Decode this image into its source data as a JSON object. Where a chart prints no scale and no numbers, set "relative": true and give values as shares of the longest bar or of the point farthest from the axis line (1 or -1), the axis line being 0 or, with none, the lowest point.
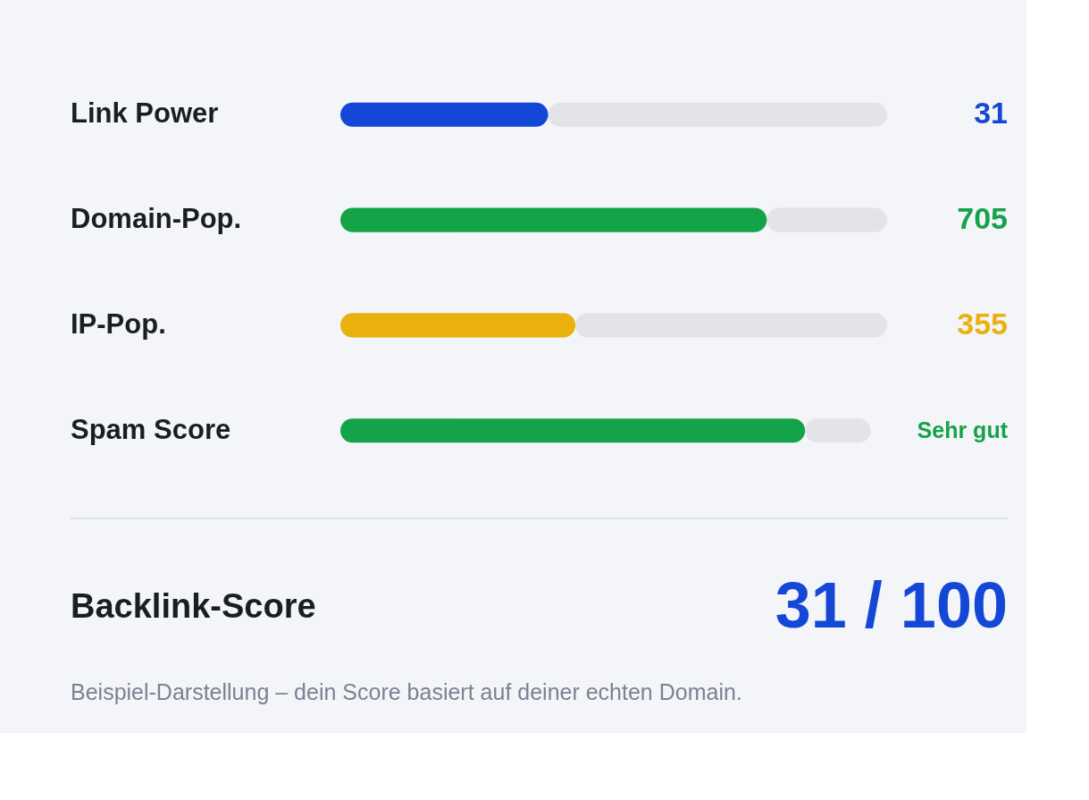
{
  "chart_data": {
    "type": "bar",
    "orientation": "horizontal",
    "relative": true,
    "stacked": true,
    "categories": [
      "Link Power",
      "Domain-Pop.",
      "IP-Pop.",
      "Spam Score"
    ],
    "series": [
      {
        "colors": [
          "#1447d6",
          "#15a34a",
          "#eab10e",
          "#15a34a"
        ],
        "values": [
          0.38,
          0.78,
          0.43,
          0.85
        ]
      },
      {
        "color": "#e2e4e9",
        "values": [
          0.62,
          0.22,
          0.57,
          0.12
        ]
      }
    ],
    "annotations": [
      "31",
      "705",
      "355",
      "Sehr gut",
      "Backlink-Score",
      "31 / 100",
      "Beispiel-Darstellung – dein Score basiert auf deiner echten Domain."
    ]
  }
}
